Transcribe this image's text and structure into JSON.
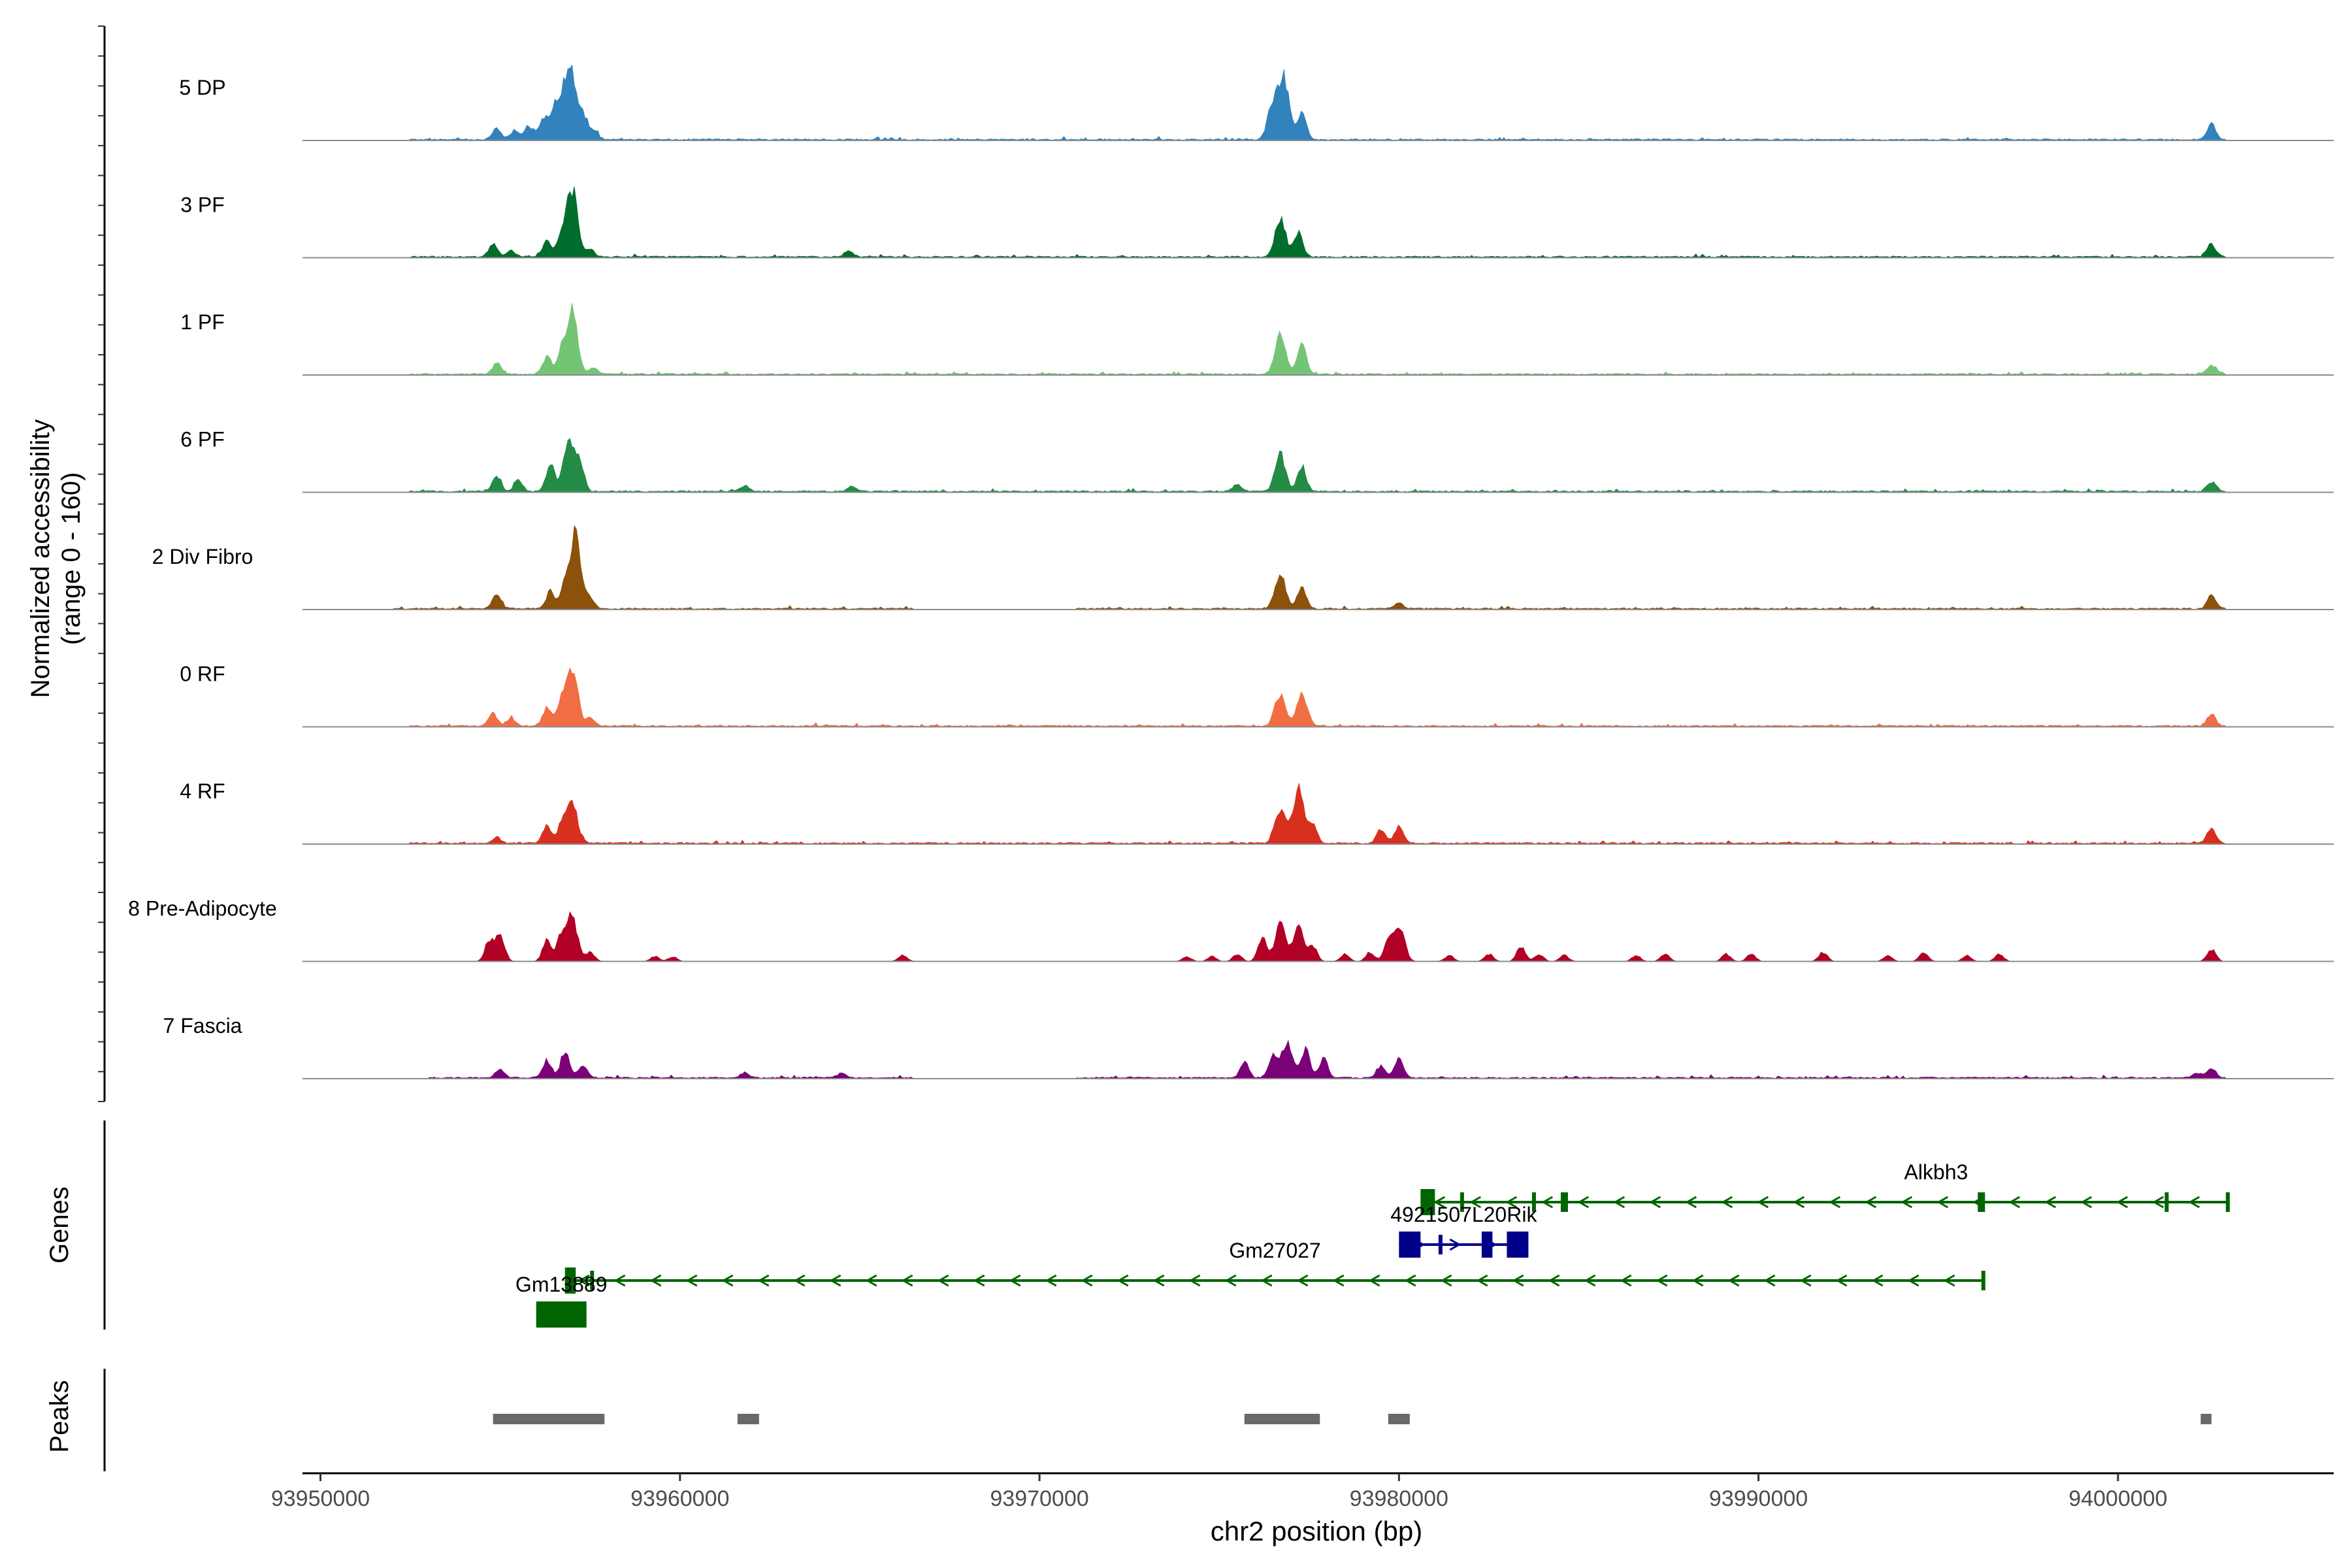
{
  "chart_data": {
    "type": "area",
    "title": "",
    "chromosome": "chr2",
    "xlabel": "chr2 position (bp)",
    "ylabel_line1": "Normalized accessibility",
    "ylabel_line2": "(range 0 - 160)",
    "xlim": [
      93949500,
      94006000
    ],
    "ylim": [
      0,
      160
    ],
    "x_ticks": [
      93950000,
      93960000,
      93970000,
      93980000,
      93990000,
      94000000
    ],
    "x_tick_labels": [
      "93950000",
      "93960000",
      "93970000",
      "93980000",
      "93990000",
      "94000000"
    ],
    "series": [
      {
        "name": "5 DP",
        "color": "#3182bd",
        "noise_ranges": [
          [
            93952500,
            94003000
          ]
        ],
        "peaks": [
          [
            93954900,
            18
          ],
          [
            93955400,
            14
          ],
          [
            93955800,
            22
          ],
          [
            93956200,
            35
          ],
          [
            93956500,
            48
          ],
          [
            93956800,
            70
          ],
          [
            93957000,
            80
          ],
          [
            93957300,
            40
          ],
          [
            93957600,
            14
          ],
          [
            93976500,
            58
          ],
          [
            93976800,
            95
          ],
          [
            93977300,
            45
          ],
          [
            94002600,
            25
          ]
        ]
      },
      {
        "name": "3 PF",
        "color": "#006d2c",
        "noise_ranges": [
          [
            93952500,
            94003000
          ]
        ],
        "peaks": [
          [
            93954800,
            22
          ],
          [
            93955300,
            10
          ],
          [
            93956300,
            25
          ],
          [
            93956700,
            30
          ],
          [
            93957000,
            110
          ],
          [
            93957500,
            12
          ],
          [
            93964700,
            10
          ],
          [
            93976700,
            60
          ],
          [
            93977200,
            40
          ],
          [
            94002600,
            22
          ]
        ]
      },
      {
        "name": "1 PF",
        "color": "#74c476",
        "noise_ranges": [
          [
            93952500,
            94003000
          ]
        ],
        "peaks": [
          [
            93954900,
            18
          ],
          [
            93956300,
            28
          ],
          [
            93956700,
            38
          ],
          [
            93957000,
            100
          ],
          [
            93957600,
            10
          ],
          [
            93976700,
            65
          ],
          [
            93977300,
            48
          ],
          [
            94002600,
            16
          ]
        ]
      },
      {
        "name": "6 PF",
        "color": "#238b45",
        "noise_ranges": [
          [
            93952500,
            94003000
          ]
        ],
        "peaks": [
          [
            93954900,
            26
          ],
          [
            93955500,
            18
          ],
          [
            93956400,
            42
          ],
          [
            93956900,
            75
          ],
          [
            93957200,
            50
          ],
          [
            93961800,
            8
          ],
          [
            93964800,
            8
          ],
          [
            93975500,
            12
          ],
          [
            93976700,
            60
          ],
          [
            93977300,
            40
          ],
          [
            94002600,
            15
          ]
        ]
      },
      {
        "name": "2 Div Fibro",
        "color": "#8c510a",
        "noise_ranges": [
          [
            93952000,
            93966500
          ],
          [
            93971000,
            94003000
          ]
        ],
        "peaks": [
          [
            93954900,
            22
          ],
          [
            93956400,
            28
          ],
          [
            93956800,
            40
          ],
          [
            93957100,
            120
          ],
          [
            93957500,
            18
          ],
          [
            93976700,
            55
          ],
          [
            93977300,
            35
          ],
          [
            93980000,
            10
          ],
          [
            94002600,
            22
          ]
        ]
      },
      {
        "name": "0 RF",
        "color": "#f16d43",
        "noise_ranges": [
          [
            93952500,
            94003000
          ]
        ],
        "peaks": [
          [
            93954800,
            20
          ],
          [
            93955300,
            12
          ],
          [
            93956300,
            30
          ],
          [
            93956700,
            40
          ],
          [
            93957000,
            95
          ],
          [
            93957500,
            12
          ],
          [
            93976700,
            52
          ],
          [
            93977300,
            52
          ],
          [
            94002600,
            20
          ]
        ]
      },
      {
        "name": "4 RF",
        "color": "#d7301f",
        "noise_ranges": [
          [
            93952500,
            94003000
          ]
        ],
        "peaks": [
          [
            93954900,
            10
          ],
          [
            93956300,
            28
          ],
          [
            93956700,
            28
          ],
          [
            93957000,
            70
          ],
          [
            93976700,
            55
          ],
          [
            93977200,
            90
          ],
          [
            93977600,
            30
          ],
          [
            93979500,
            22
          ],
          [
            93980000,
            28
          ],
          [
            94002600,
            25
          ]
        ]
      },
      {
        "name": "8 Pre-Adipocyte",
        "color": "#b10026",
        "noise_ranges": [],
        "peaks": [
          [
            93954700,
            35
          ],
          [
            93955000,
            45
          ],
          [
            93956300,
            35
          ],
          [
            93956700,
            40
          ],
          [
            93957000,
            75
          ],
          [
            93957500,
            15
          ],
          [
            93959300,
            8
          ],
          [
            93959800,
            8
          ],
          [
            93966200,
            10
          ],
          [
            93974100,
            8
          ],
          [
            93974800,
            8
          ],
          [
            93975500,
            12
          ],
          [
            93976200,
            40
          ],
          [
            93976700,
            60
          ],
          [
            93977200,
            55
          ],
          [
            93977600,
            25
          ],
          [
            93978500,
            12
          ],
          [
            93979200,
            15
          ],
          [
            93979700,
            30
          ],
          [
            93980000,
            62
          ],
          [
            93981400,
            10
          ],
          [
            93982500,
            12
          ],
          [
            93983400,
            25
          ],
          [
            93983900,
            12
          ],
          [
            93984600,
            10
          ],
          [
            93986600,
            10
          ],
          [
            93987400,
            12
          ],
          [
            93989100,
            12
          ],
          [
            93989800,
            12
          ],
          [
            93991800,
            15
          ],
          [
            93993600,
            10
          ],
          [
            93994600,
            15
          ],
          [
            93995800,
            10
          ],
          [
            93996700,
            12
          ],
          [
            94002600,
            20
          ]
        ]
      },
      {
        "name": "7 Fascia",
        "color": "#7a0177",
        "noise_ranges": [
          [
            93953000,
            93966500
          ],
          [
            93971000,
            94003000
          ]
        ],
        "peaks": [
          [
            93955000,
            12
          ],
          [
            93956300,
            28
          ],
          [
            93956800,
            42
          ],
          [
            93957300,
            20
          ],
          [
            93961800,
            8
          ],
          [
            93964500,
            8
          ],
          [
            93975700,
            25
          ],
          [
            93976500,
            40
          ],
          [
            93976900,
            60
          ],
          [
            93977400,
            45
          ],
          [
            93977900,
            30
          ],
          [
            93979500,
            20
          ],
          [
            93980000,
            30
          ],
          [
            94002200,
            8
          ],
          [
            94002600,
            15
          ]
        ]
      }
    ],
    "genes": [
      {
        "name": "Alkbh3",
        "strand": "-",
        "color": "#006400",
        "start": 93980600,
        "end": 94003100,
        "row": 0,
        "exons": [
          [
            93980600,
            93981000
          ],
          [
            93981700,
            93981800
          ],
          [
            93983700,
            93983800
          ],
          [
            93984500,
            93984700
          ],
          [
            93996100,
            93996300
          ],
          [
            94001300,
            94001400
          ],
          [
            94003000,
            94003100
          ]
        ]
      },
      {
        "name": "4921507L20Rik",
        "strand": "+",
        "color": "#00008b",
        "start": 93980000,
        "end": 93983600,
        "row": 1,
        "exons": [
          [
            93980000,
            93980600
          ],
          [
            93981100,
            93981200
          ],
          [
            93982300,
            93982600
          ],
          [
            93983000,
            93983600
          ]
        ]
      },
      {
        "name": "Gm27027",
        "strand": "-",
        "color": "#006400",
        "start": 93956800,
        "end": 93996300,
        "row": 2,
        "exons": [
          [
            93956800,
            93957100
          ],
          [
            93957500,
            93957600
          ],
          [
            93996200,
            93996300
          ]
        ]
      },
      {
        "name": "Gm13889",
        "strand": "+",
        "color": "#006400",
        "start": 93956000,
        "end": 93957400,
        "row": 3,
        "exons": [
          [
            93956000,
            93957400
          ]
        ]
      }
    ],
    "peaks_track": {
      "label": "Peaks",
      "color": "#696969",
      "regions": [
        [
          93954800,
          93957900
        ],
        [
          93961600,
          93962200
        ],
        [
          93975700,
          93977800
        ],
        [
          93979700,
          93980300
        ],
        [
          94002300,
          94002600
        ]
      ]
    },
    "gene_track_label": "Genes"
  }
}
